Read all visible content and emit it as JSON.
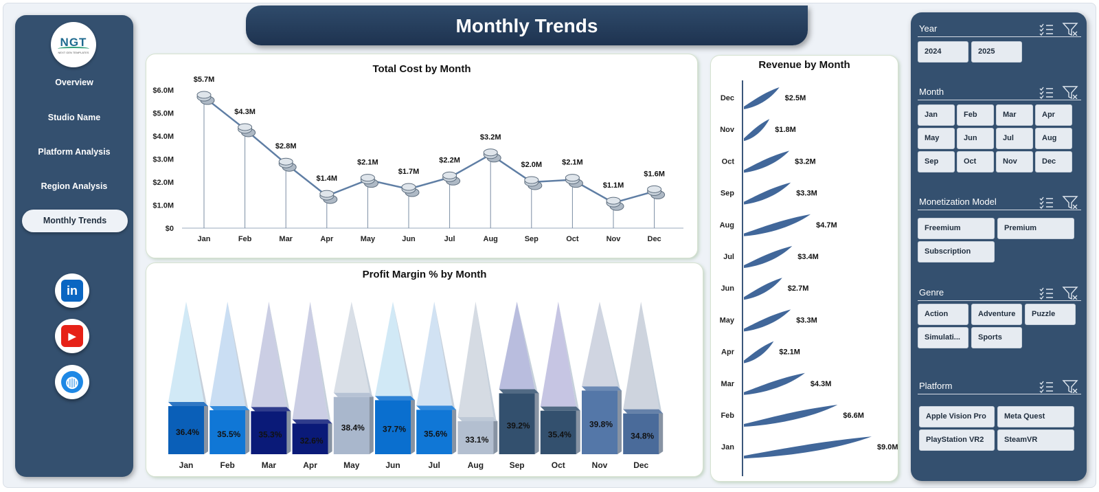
{
  "page": {
    "title": "Monthly Trends"
  },
  "logo": {
    "text": "NGT",
    "tagline": "NEXT GEN TEMPLATES"
  },
  "nav": {
    "items": [
      {
        "label": "Overview"
      },
      {
        "label": "Studio Name"
      },
      {
        "label": "Platform Analysis"
      },
      {
        "label": "Region Analysis"
      },
      {
        "label": "Monthly Trends",
        "active": true
      }
    ],
    "social": [
      {
        "icon": "linkedin-icon",
        "glyph": "in",
        "color": "#0a66c2"
      },
      {
        "icon": "youtube-icon",
        "glyph": "▶",
        "color": "#e62117"
      },
      {
        "icon": "globe-icon",
        "glyph": "◍",
        "color": "#1e88e5"
      }
    ]
  },
  "filters": {
    "year": {
      "title": "Year",
      "options": [
        "2024",
        "2025"
      ]
    },
    "month": {
      "title": "Month",
      "options": [
        "Jan",
        "Feb",
        "Mar",
        "Apr",
        "May",
        "Jun",
        "Jul",
        "Aug",
        "Sep",
        "Oct",
        "Nov",
        "Dec"
      ]
    },
    "monetization": {
      "title": "Monetization Model",
      "options": [
        "Freemium",
        "Premium",
        "Subscription"
      ]
    },
    "genre": {
      "title": "Genre",
      "options": [
        "Action",
        "Adventure",
        "Puzzle",
        "Simulati...",
        "Sports"
      ]
    },
    "platform": {
      "title": "Platform",
      "options": [
        "Apple Vision Pro",
        "Meta Quest",
        "PlayStation VR2",
        "SteamVR"
      ]
    }
  },
  "chart_data": [
    {
      "type": "line",
      "title": "Total Cost by Month",
      "categories": [
        "Jan",
        "Feb",
        "Mar",
        "Apr",
        "May",
        "Jun",
        "Jul",
        "Aug",
        "Sep",
        "Oct",
        "Nov",
        "Dec"
      ],
      "values": [
        5.7,
        4.3,
        2.8,
        1.4,
        2.1,
        1.7,
        2.2,
        3.2,
        2.0,
        2.1,
        1.1,
        1.6
      ],
      "data_labels": [
        "$5.7M",
        "$4.3M",
        "$2.8M",
        "$1.4M",
        "$2.1M",
        "$1.7M",
        "$2.2M",
        "$3.2M",
        "$2.0M",
        "$2.1M",
        "$1.1M",
        "$1.6M"
      ],
      "unit": "$M",
      "ylim": [
        0,
        6
      ],
      "yticks": [
        "$0",
        "$1.0M",
        "$2.0M",
        "$3.0M",
        "$4.0M",
        "$5.0M",
        "$6.0M"
      ],
      "grid": false,
      "legend": "none"
    },
    {
      "type": "bar",
      "title": "Profit Margin % by Month",
      "categories": [
        "Jan",
        "Feb",
        "Mar",
        "Apr",
        "May",
        "Jun",
        "Jul",
        "Aug",
        "Sep",
        "Oct",
        "Nov",
        "Dec"
      ],
      "values": [
        36.4,
        35.5,
        35.3,
        32.6,
        38.4,
        37.7,
        35.6,
        33.1,
        39.2,
        35.4,
        39.8,
        34.8
      ],
      "data_labels": [
        "36.4%",
        "35.5%",
        "35.3%",
        "32.6%",
        "38.4%",
        "37.7%",
        "35.6%",
        "33.1%",
        "39.2%",
        "35.4%",
        "39.8%",
        "34.8%"
      ],
      "colors": [
        "#0a5fb8",
        "#1077d6",
        "#0a1a78",
        "#0a1a78",
        "#a9b7cc",
        "#0a6fcf",
        "#1077d6",
        "#b3bfd0",
        "#33506e",
        "#33506e",
        "#5477a8",
        "#4a6b9a"
      ],
      "legend": "none"
    },
    {
      "type": "bar",
      "orientation": "horizontal",
      "title": "Revenue by Month",
      "categories": [
        "Dec",
        "Nov",
        "Oct",
        "Sep",
        "Aug",
        "Jul",
        "Jun",
        "May",
        "Apr",
        "Mar",
        "Feb",
        "Jan"
      ],
      "values": [
        2.5,
        1.8,
        3.2,
        3.3,
        4.7,
        3.4,
        2.7,
        3.3,
        2.1,
        4.3,
        6.6,
        9.0
      ],
      "data_labels": [
        "$2.5M",
        "$1.8M",
        "$3.2M",
        "$3.3M",
        "$4.7M",
        "$3.4M",
        "$2.7M",
        "$3.3M",
        "$2.1M",
        "$4.3M",
        "$6.6M",
        "$9.0M"
      ],
      "unit": "$M",
      "color": "#41679a",
      "legend": "none"
    }
  ]
}
